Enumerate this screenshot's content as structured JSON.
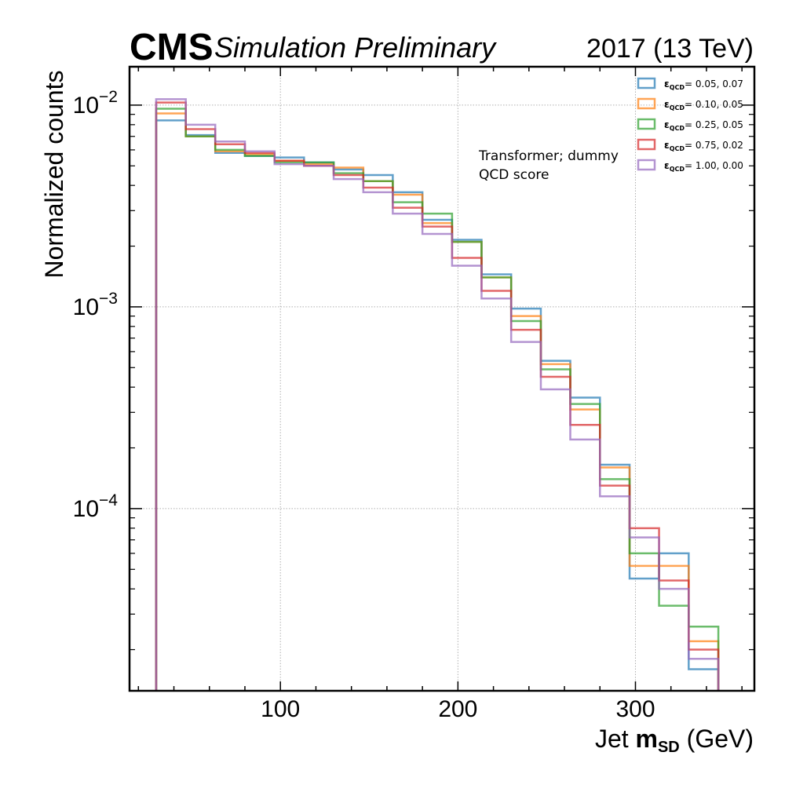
{
  "header": {
    "experiment": "CMS",
    "extra_text": "Simulation Preliminary",
    "lumi_text": "2017 (13 TeV)"
  },
  "annotation": {
    "line1": "Transformer; dummy",
    "line2": "QCD score"
  },
  "colors": {
    "series": [
      "#1f77b4",
      "#ff7f0e",
      "#2ca02c",
      "#d62728",
      "#9467bd"
    ],
    "frame": "#000000",
    "grid": "#b0b0b0"
  },
  "chart_data": {
    "type": "line",
    "style": "step-histogram",
    "title": "",
    "xlabel_prefix": "Jet ",
    "xlabel_symbol": "m",
    "xlabel_sub": "SD",
    "xlabel_suffix": " (GeV)",
    "ylabel": "Normalized counts",
    "yscale": "log",
    "xlim": [
      15,
      367
    ],
    "ylim": [
      1.25e-05,
      0.0155
    ],
    "grid": true,
    "legend_position": "top-right",
    "x_ticks": [
      100,
      200,
      300
    ],
    "y_ticks": [
      {
        "value": 0.01,
        "base": "10",
        "exp": "−2"
      },
      {
        "value": 0.001,
        "base": "10",
        "exp": "−3"
      },
      {
        "value": 0.0001,
        "base": "10",
        "exp": "−4"
      }
    ],
    "bin_edges": [
      30,
      46.7,
      63.3,
      80,
      96.7,
      113.3,
      130,
      146.7,
      163.3,
      180,
      196.7,
      213.3,
      230,
      246.7,
      263.3,
      280,
      296.7,
      313.3,
      330,
      346.7
    ],
    "series": [
      {
        "name_symbol": "ε",
        "name_sub": "QCD",
        "name_value": "= 0.05, 0.07",
        "values": [
          0.0084,
          0.0071,
          0.0058,
          0.0056,
          0.0055,
          0.0052,
          0.0048,
          0.0045,
          0.0037,
          0.0027,
          0.00215,
          0.00145,
          0.00098,
          0.00054,
          0.000355,
          0.000165,
          4.5e-05,
          6e-05,
          1.6e-05
        ]
      },
      {
        "name_symbol": "ε",
        "name_sub": "QCD",
        "name_value": "= 0.10, 0.05",
        "values": [
          0.0091,
          0.007,
          0.0059,
          0.0057,
          0.0053,
          0.0051,
          0.0049,
          0.0042,
          0.0036,
          0.0026,
          0.0021,
          0.0014,
          0.0009,
          0.00052,
          0.00031,
          0.00016,
          5.2e-05,
          5.2e-05,
          2.2e-05
        ]
      },
      {
        "name_symbol": "ε",
        "name_sub": "QCD",
        "name_value": "= 0.25, 0.05",
        "values": [
          0.0096,
          0.007,
          0.006,
          0.0056,
          0.0052,
          0.0052,
          0.0046,
          0.0042,
          0.0033,
          0.0029,
          0.0021,
          0.0014,
          0.00085,
          0.00049,
          0.00033,
          0.00014,
          6e-05,
          3.3e-05,
          2.6e-05
        ]
      },
      {
        "name_symbol": "ε",
        "name_sub": "QCD",
        "name_value": "= 0.75, 0.02",
        "values": [
          0.0103,
          0.0076,
          0.0064,
          0.0058,
          0.0053,
          0.005,
          0.0045,
          0.0039,
          0.0031,
          0.0025,
          0.00175,
          0.0012,
          0.00077,
          0.00045,
          0.00026,
          0.00013,
          8e-05,
          4.4e-05,
          2e-05
        ]
      },
      {
        "name_symbol": "ε",
        "name_sub": "QCD",
        "name_value": "= 1.00, 0.00",
        "values": [
          0.0107,
          0.008,
          0.0066,
          0.0059,
          0.0051,
          0.005,
          0.0043,
          0.0037,
          0.0029,
          0.0023,
          0.0016,
          0.0011,
          0.00067,
          0.00039,
          0.00022,
          0.000115,
          7.2e-05,
          4e-05,
          1.8e-05
        ]
      }
    ]
  }
}
